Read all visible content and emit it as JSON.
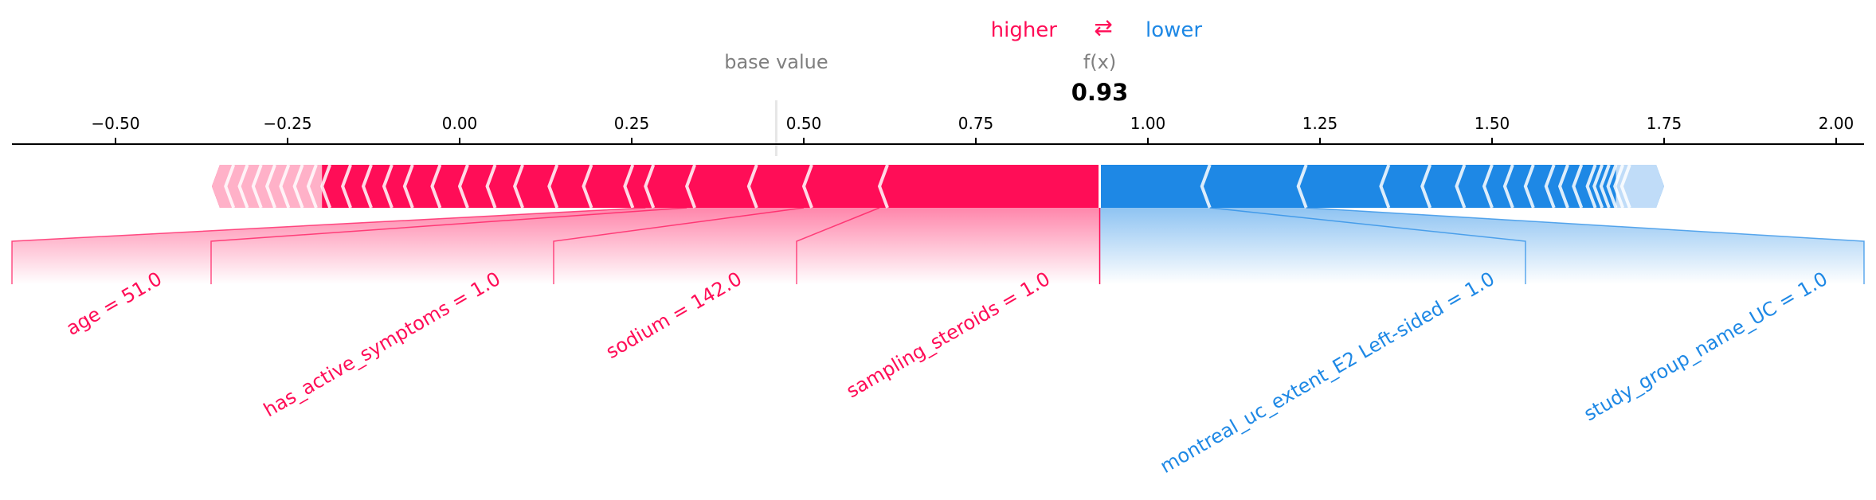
{
  "chart_data": {
    "type": "force_plot",
    "legend": {
      "higher": "higher",
      "arrows": "⇄",
      "lower": "lower"
    },
    "base_label": "base value",
    "fx_label": "f(x)",
    "output_value": 0.93,
    "output_label": "0.93",
    "base_value": 0.46,
    "axis": {
      "min": -0.65,
      "max": 2.04,
      "ticks": [
        -0.5,
        -0.25,
        0.0,
        0.25,
        0.5,
        0.75,
        1.0,
        1.25,
        1.5,
        1.75,
        2.0
      ],
      "tick_labels": [
        "−0.50",
        "−0.25",
        "0.00",
        "0.25",
        "0.50",
        "0.75",
        "1.00",
        "1.25",
        "1.50",
        "1.75",
        "2.00"
      ]
    },
    "positive_extent": [
      -0.36,
      0.93
    ],
    "negative_extent": [
      0.93,
      1.75
    ],
    "positive_segment_boundaries": [
      0.93,
      0.61,
      0.5,
      0.42,
      0.33,
      0.27,
      0.24,
      0.18,
      0.13,
      0.08,
      0.04,
      0.0,
      -0.04,
      -0.08,
      -0.11,
      -0.14,
      -0.17,
      -0.2,
      -0.22,
      -0.24,
      -0.26,
      -0.28,
      -0.3,
      -0.32,
      -0.34,
      -0.36
    ],
    "negative_segment_boundaries": [
      0.93,
      1.09,
      1.23,
      1.35,
      1.41,
      1.46,
      1.5,
      1.53,
      1.56,
      1.59,
      1.61,
      1.63,
      1.65,
      1.66,
      1.67,
      1.68,
      1.69,
      1.7,
      1.75
    ],
    "features_positive": [
      {
        "label": "sampling_steroids = 1.0",
        "from": 0.93,
        "to": 0.61
      },
      {
        "label": "sodium = 142.0",
        "from": 0.61,
        "to": 0.5
      },
      {
        "label": "has_active_symptoms = 1.0",
        "from": 0.5,
        "to": 0.33
      },
      {
        "label": "age = 51.0",
        "from": 0.33,
        "to": 0.27
      }
    ],
    "features_negative": [
      {
        "label": "montreal_uc_extent_E2 Left-sided = 1.0",
        "from": 0.93,
        "to": 1.09
      },
      {
        "label": "study_group_name_UC = 1.0",
        "from": 1.09,
        "to": 1.23
      }
    ],
    "colors": {
      "positive": "#ff0d57",
      "negative": "#1e88e5",
      "positive_light": "#ffc3d5",
      "negative_light": "#d1e6fa"
    }
  }
}
